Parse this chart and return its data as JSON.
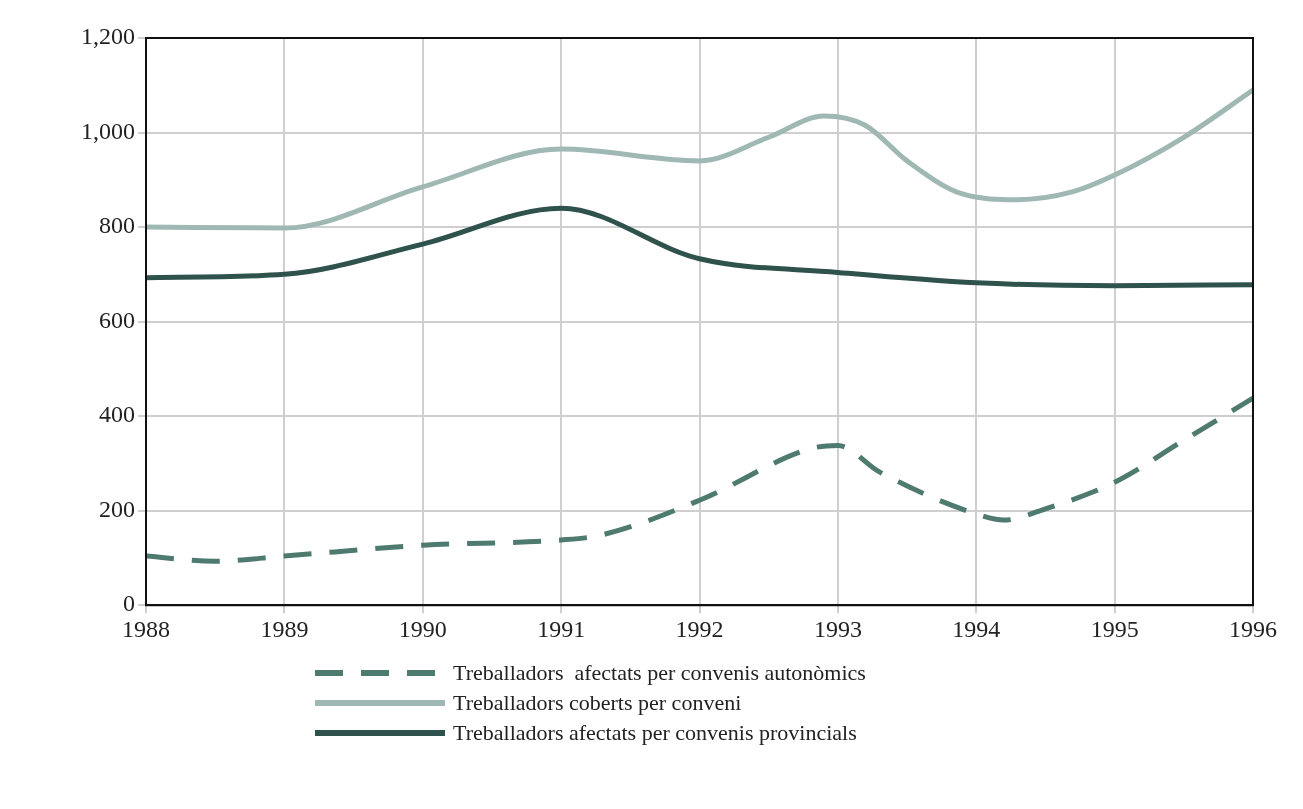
{
  "chart_data": {
    "type": "line",
    "xlim": [
      1988,
      1996
    ],
    "xticks": [
      1988,
      1989,
      1990,
      1991,
      1992,
      1993,
      1994,
      1995,
      1996
    ],
    "ylim": [
      0,
      1200
    ],
    "yticks": [
      0,
      200,
      400,
      600,
      800,
      {
        "value": 1000,
        "label": "1,000"
      },
      {
        "value": 1200,
        "label": "1,200"
      }
    ],
    "grid": true,
    "legend": "bottom",
    "marker": "none",
    "series": [
      {
        "name": "Treballadors  afectats per convenis autonòmics",
        "color": "#4e7a70",
        "line_style": "dashed",
        "x": [
          1988,
          1988.5,
          1989,
          1990,
          1991,
          1991.3,
          1992,
          1992.8,
          1993,
          1993.3,
          1994,
          1994.2,
          1994.5,
          1995,
          1995.5,
          1996
        ],
        "values": [
          104,
          93,
          104,
          127,
          138,
          149,
          222,
          331,
          338,
          282,
          193,
          180,
          204,
          260,
          349,
          438
        ]
      },
      {
        "name": "Treballadors coberts per conveni",
        "color": "#9fb8b4",
        "line_style": "solid",
        "x": [
          1988,
          1989,
          1990,
          1991,
          1992,
          1992.5,
          1992.9,
          1993.2,
          1993.5,
          1993.9,
          1994.3,
          1994.7,
          1995,
          1995.5,
          1996
        ],
        "values": [
          800,
          798,
          885,
          965,
          940,
          990,
          1035,
          1015,
          940,
          870,
          858,
          875,
          910,
          990,
          1090
        ]
      },
      {
        "name": "Treballadors afectats per convenis provincials",
        "color": "#2f524c",
        "line_style": "solid",
        "x": [
          1988,
          1989,
          1990,
          1991,
          1992,
          1993,
          1994,
          1995,
          1996
        ],
        "values": [
          693,
          700,
          764,
          840,
          733,
          704,
          682,
          676,
          678
        ]
      }
    ]
  }
}
